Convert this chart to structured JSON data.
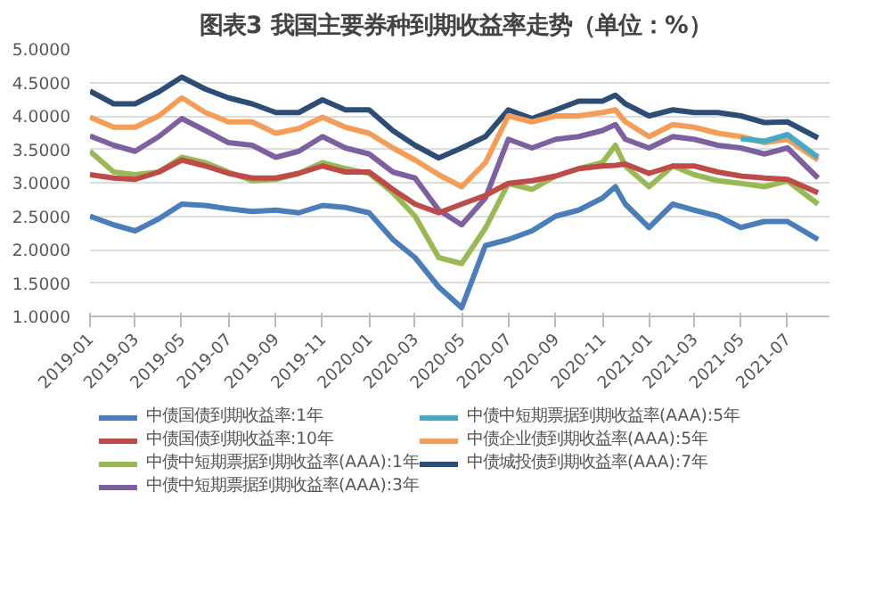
{
  "chart_data": {
    "type": "line",
    "title": "图表3  我国主要券种到期收益率走势（单位：%）",
    "x": [
      "2019-01",
      "2019-02",
      "2019-03",
      "2019-04",
      "2019-05",
      "2019-06",
      "2019-07",
      "2019-08",
      "2019-09",
      "2019-10",
      "2019-11",
      "2019-12",
      "2020-01",
      "2020-02",
      "2020-03",
      "2020-04",
      "2020-05",
      "2020-06",
      "2020-07",
      "2020-08",
      "2020-09",
      "2020-10",
      "2020-11",
      "2020-11-18",
      "2020-12",
      "2021-01",
      "2021-02",
      "2021-03",
      "2021-04",
      "2021-05",
      "2021-06",
      "2021-07",
      "2021-08-10"
    ],
    "series": [
      {
        "name": "中债国债到期收益率:1年",
        "color": "#4a7ebb",
        "values": [
          2.5,
          2.37,
          2.28,
          2.46,
          2.68,
          2.66,
          2.61,
          2.57,
          2.59,
          2.55,
          2.66,
          2.63,
          2.55,
          2.15,
          1.88,
          1.44,
          1.13,
          2.06,
          2.15,
          2.28,
          2.5,
          2.59,
          2.77,
          2.94,
          2.68,
          2.33,
          2.68,
          2.59,
          2.5,
          2.33,
          2.42,
          2.42,
          2.15
        ]
      },
      {
        "name": "中债国债到期收益率:10年",
        "color": "#be4b48",
        "values": [
          3.12,
          3.07,
          3.05,
          3.16,
          3.34,
          3.25,
          3.14,
          3.07,
          3.07,
          3.14,
          3.25,
          3.16,
          3.16,
          2.9,
          2.68,
          2.55,
          2.68,
          2.81,
          2.99,
          3.03,
          3.1,
          3.21,
          3.25,
          3.26,
          3.28,
          3.14,
          3.25,
          3.25,
          3.16,
          3.1,
          3.07,
          3.05,
          2.85
        ]
      },
      {
        "name": "中债中短期票据到期收益率(AAA):1年",
        "color": "#98b954",
        "values": [
          3.47,
          3.16,
          3.12,
          3.16,
          3.38,
          3.3,
          3.16,
          3.03,
          3.05,
          3.14,
          3.3,
          3.21,
          3.14,
          2.85,
          2.5,
          1.88,
          1.79,
          2.32,
          2.99,
          2.9,
          3.1,
          3.21,
          3.3,
          3.56,
          3.25,
          2.94,
          3.25,
          3.12,
          3.03,
          2.99,
          2.94,
          3.03,
          2.68
        ]
      },
      {
        "name": "中债中短期票据到期收益率(AAA):3年",
        "color": "#7d60a0",
        "values": [
          3.7,
          3.56,
          3.47,
          3.69,
          3.96,
          3.78,
          3.6,
          3.56,
          3.38,
          3.47,
          3.69,
          3.52,
          3.43,
          3.16,
          3.07,
          2.59,
          2.37,
          2.77,
          3.65,
          3.52,
          3.65,
          3.69,
          3.78,
          3.87,
          3.65,
          3.52,
          3.69,
          3.65,
          3.56,
          3.52,
          3.43,
          3.52,
          3.07
        ]
      },
      {
        "name": "中债中短期票据到期收益率(AAA):5年",
        "color": "#46aac5",
        "values": [
          null,
          null,
          null,
          null,
          null,
          null,
          null,
          null,
          null,
          null,
          null,
          null,
          null,
          null,
          null,
          null,
          null,
          null,
          null,
          null,
          null,
          null,
          null,
          null,
          null,
          null,
          null,
          null,
          null,
          3.66,
          3.62,
          3.72,
          3.38
        ]
      },
      {
        "name": "中债企业债到期收益率(AAA):5年",
        "color": "#f59d56",
        "values": [
          3.98,
          3.83,
          3.83,
          4.0,
          4.27,
          4.05,
          3.91,
          3.91,
          3.74,
          3.81,
          3.98,
          3.83,
          3.74,
          3.52,
          3.34,
          3.12,
          2.94,
          3.3,
          4.0,
          3.91,
          4.0,
          4.0,
          4.05,
          4.09,
          3.91,
          3.69,
          3.87,
          3.83,
          3.74,
          3.69,
          3.6,
          3.65,
          3.34
        ]
      },
      {
        "name": "中债城投债到期收益率(AAA):7年",
        "color": "#2c4d75",
        "values": [
          4.37,
          4.18,
          4.18,
          4.36,
          4.58,
          4.4,
          4.27,
          4.18,
          4.05,
          4.05,
          4.24,
          4.09,
          4.09,
          3.78,
          3.56,
          3.37,
          3.52,
          3.69,
          4.09,
          3.96,
          4.09,
          4.22,
          4.22,
          4.31,
          4.18,
          4.0,
          4.09,
          4.05,
          4.05,
          4.0,
          3.9,
          3.91,
          3.67
        ]
      }
    ],
    "xlim": [
      "2019-01",
      "2021-08-25"
    ],
    "xticks": [
      "2019-01",
      "2019-03",
      "2019-05",
      "2019-07",
      "2019-09",
      "2019-11",
      "2020-01",
      "2020-03",
      "2020-05",
      "2020-07",
      "2020-09",
      "2020-11",
      "2021-01",
      "2021-03",
      "2021-05",
      "2021-07"
    ],
    "ylim": [
      1,
      5
    ],
    "yticks": [
      {
        "value": 1,
        "label": "1.0000"
      },
      {
        "value": 1.5,
        "label": "1.5000"
      },
      {
        "value": 2,
        "label": "2.0000"
      },
      {
        "value": 2.5,
        "label": "2.5000"
      },
      {
        "value": 3,
        "label": "3.0000"
      },
      {
        "value": 3.5,
        "label": "3.5000"
      },
      {
        "value": 4,
        "label": "4.0000"
      },
      {
        "value": 4.5,
        "label": "4.5000"
      },
      {
        "value": 5,
        "label": "5.0000"
      }
    ],
    "grid": "y",
    "legend": "bottom",
    "marker": "none",
    "line_style": "solid"
  }
}
